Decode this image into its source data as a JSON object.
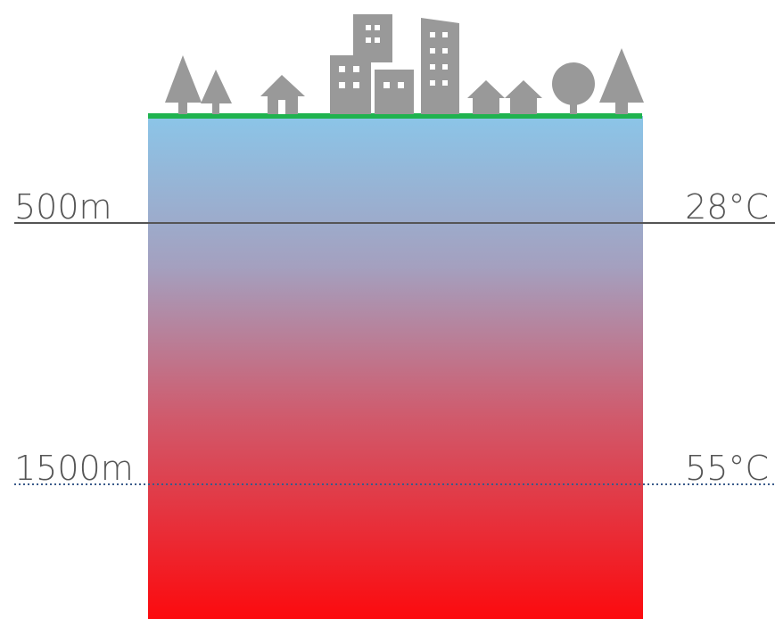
{
  "levels": [
    {
      "depth": "500m",
      "temperature": "28°C"
    },
    {
      "depth": "1500m",
      "temperature": "55°C"
    }
  ]
}
